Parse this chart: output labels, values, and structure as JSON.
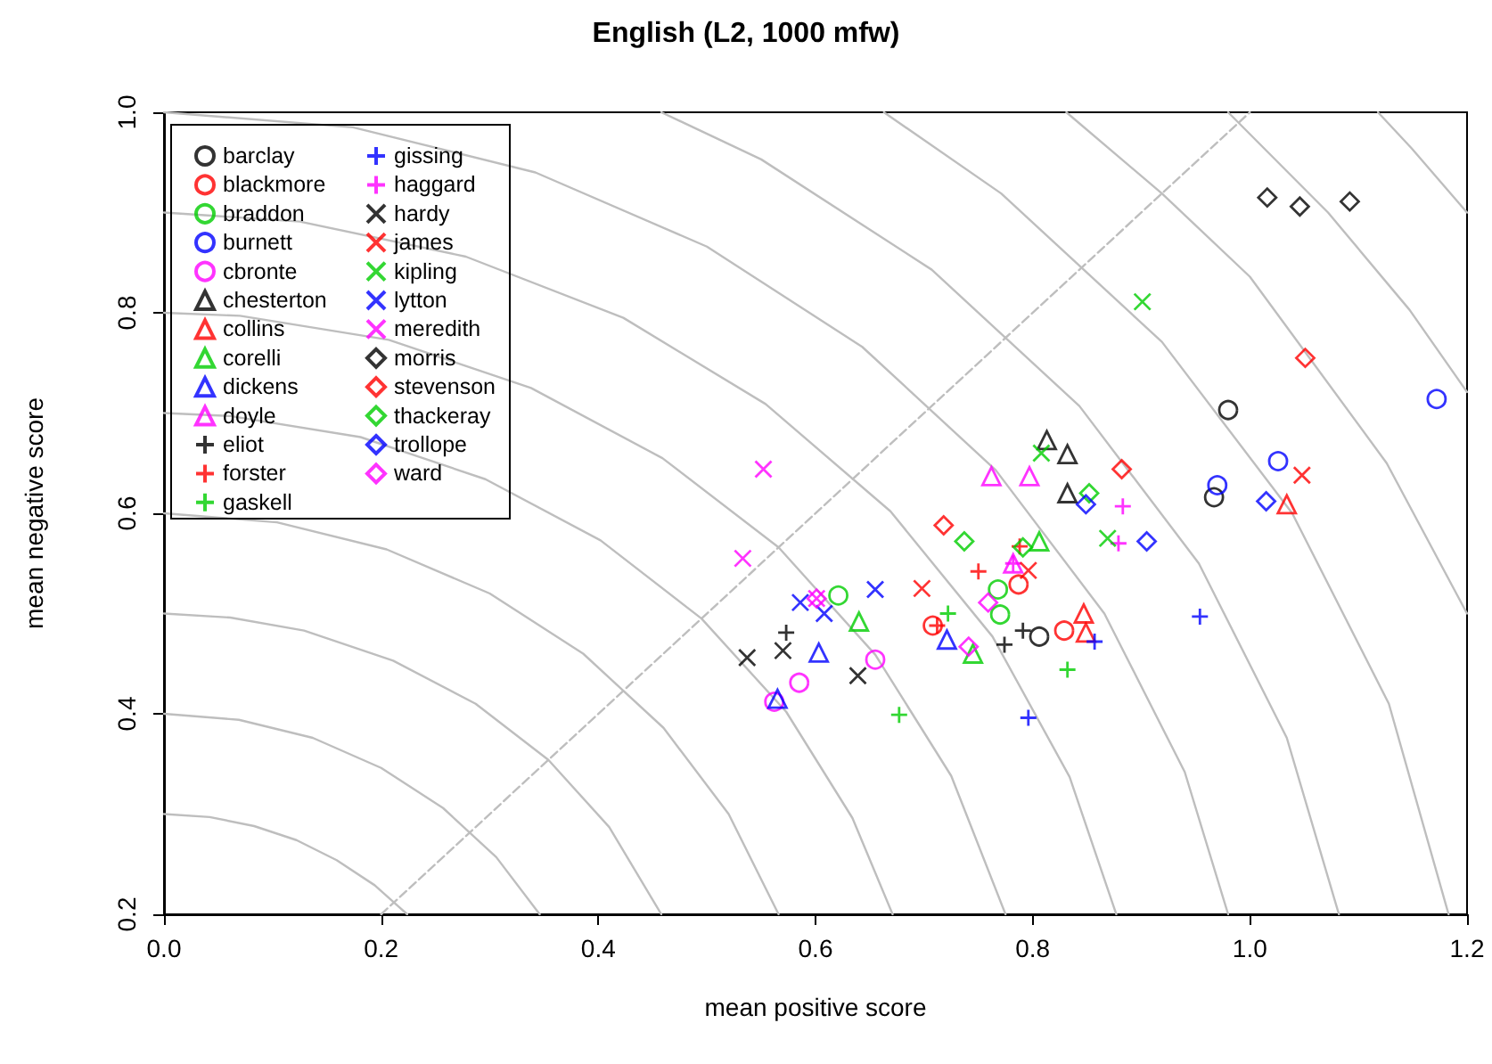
{
  "chart_data": {
    "type": "scatter",
    "title": "English (L2, 1000 mfw)",
    "xlabel": "mean positive score",
    "ylabel": "mean negative score",
    "xlim": [
      0,
      1.2
    ],
    "ylim": [
      0.2,
      1.0
    ],
    "xticks": [
      {
        "value": 0,
        "label": "0.0"
      },
      0.2,
      0.4,
      0.6,
      0.8,
      {
        "value": 1,
        "label": "1.0"
      },
      1.2
    ],
    "yticks": [
      0.2,
      0.4,
      0.6,
      0.8,
      {
        "value": 1,
        "label": "1.0"
      }
    ],
    "grid": false,
    "legend": "top left",
    "series": [
      {
        "name": "barclay",
        "color": "#000000",
        "marker": "circle",
        "x": [
          0.98,
          0.967,
          0.806
        ],
        "values": [
          0.703,
          0.616,
          0.477
        ]
      },
      {
        "name": "blackmore",
        "color": "#ff0000",
        "marker": "circle",
        "x": [
          0.708,
          0.787,
          0.829
        ],
        "values": [
          0.488,
          0.529,
          0.483
        ]
      },
      {
        "name": "braddon",
        "color": "#00cd00",
        "marker": "circle",
        "x": [
          0.621,
          0.768,
          0.77
        ],
        "values": [
          0.518,
          0.524,
          0.499
        ]
      },
      {
        "name": "burnett",
        "color": "#0000ff",
        "marker": "circle",
        "x": [
          1.172,
          1.026,
          0.97
        ],
        "values": [
          0.714,
          0.652,
          0.628
        ]
      },
      {
        "name": "cbronte",
        "color": "#ff00ff",
        "marker": "circle",
        "x": [
          0.655,
          0.585,
          0.562
        ],
        "values": [
          0.454,
          0.431,
          0.412
        ]
      },
      {
        "name": "chesterton",
        "color": "#000000",
        "marker": "triangle",
        "x": [
          0.813,
          0.832,
          0.832
        ],
        "values": [
          0.673,
          0.659,
          0.62
        ]
      },
      {
        "name": "collins",
        "color": "#ff0000",
        "marker": "triangle",
        "x": [
          1.034,
          0.847,
          0.849
        ],
        "values": [
          0.609,
          0.5,
          0.481
        ]
      },
      {
        "name": "corelli",
        "color": "#00cd00",
        "marker": "triangle",
        "x": [
          0.64,
          0.806,
          0.745
        ],
        "values": [
          0.492,
          0.572,
          0.46
        ]
      },
      {
        "name": "dickens",
        "color": "#0000ff",
        "marker": "triangle",
        "x": [
          0.603,
          0.565,
          0.721
        ],
        "values": [
          0.461,
          0.415,
          0.474
        ]
      },
      {
        "name": "doyle",
        "color": "#ff00ff",
        "marker": "triangle",
        "x": [
          0.762,
          0.797,
          0.782
        ],
        "values": [
          0.637,
          0.637,
          0.55
        ]
      },
      {
        "name": "eliot",
        "color": "#000000",
        "marker": "plus",
        "x": [
          0.573,
          0.774,
          0.791
        ],
        "values": [
          0.481,
          0.469,
          0.483
        ]
      },
      {
        "name": "forster",
        "color": "#ff0000",
        "marker": "plus",
        "x": [
          0.75,
          0.788,
          0.712
        ],
        "values": [
          0.542,
          0.567,
          0.488
        ]
      },
      {
        "name": "gaskell",
        "color": "#00cd00",
        "marker": "plus",
        "x": [
          0.677,
          0.722,
          0.832
        ],
        "values": [
          0.399,
          0.5,
          0.444
        ]
      },
      {
        "name": "gissing",
        "color": "#0000ff",
        "marker": "plus",
        "x": [
          0.796,
          0.857,
          0.954
        ],
        "values": [
          0.396,
          0.472,
          0.497
        ]
      },
      {
        "name": "haggard",
        "color": "#ff00ff",
        "marker": "plus",
        "x": [
          0.883,
          0.879,
          0.782
        ],
        "values": [
          0.607,
          0.57,
          0.55
        ]
      },
      {
        "name": "hardy",
        "color": "#000000",
        "marker": "cross",
        "x": [
          0.537,
          0.57,
          0.639
        ],
        "values": [
          0.456,
          0.463,
          0.438
        ]
      },
      {
        "name": "james",
        "color": "#ff0000",
        "marker": "cross",
        "x": [
          0.698,
          0.796,
          1.048
        ],
        "values": [
          0.525,
          0.543,
          0.638
        ]
      },
      {
        "name": "kipling",
        "color": "#00cd00",
        "marker": "cross",
        "x": [
          0.901,
          0.808,
          0.869
        ],
        "values": [
          0.811,
          0.66,
          0.575
        ]
      },
      {
        "name": "lytton",
        "color": "#0000ff",
        "marker": "cross",
        "x": [
          0.655,
          0.586,
          0.608
        ],
        "values": [
          0.524,
          0.511,
          0.5
        ]
      },
      {
        "name": "meredith",
        "color": "#ff00ff",
        "marker": "cross",
        "x": [
          0.552,
          0.533,
          0.601
        ],
        "values": [
          0.644,
          0.555,
          0.515
        ]
      },
      {
        "name": "morris",
        "color": "#000000",
        "marker": "diamond",
        "x": [
          1.016,
          1.046,
          1.092
        ],
        "values": [
          0.915,
          0.906,
          0.911
        ]
      },
      {
        "name": "stevenson",
        "color": "#ff0000",
        "marker": "diamond",
        "x": [
          1.051,
          0.718,
          0.882
        ],
        "values": [
          0.755,
          0.588,
          0.644
        ]
      },
      {
        "name": "thackeray",
        "color": "#00cd00",
        "marker": "diamond",
        "x": [
          0.737,
          0.852,
          0.791
        ],
        "values": [
          0.572,
          0.62,
          0.566
        ]
      },
      {
        "name": "trollope",
        "color": "#0000ff",
        "marker": "diamond",
        "x": [
          0.849,
          0.905,
          1.015
        ],
        "values": [
          0.609,
          0.572,
          0.612
        ]
      },
      {
        "name": "ward",
        "color": "#ff00ff",
        "marker": "diamond",
        "x": [
          0.759,
          0.741,
          0.601
        ],
        "values": [
          0.511,
          0.467,
          0.515
        ]
      },
      {
        "type": "line",
        "color": "#bebebe",
        "line_style": "dashed",
        "x": [
          0.2,
          1.0
        ],
        "values": [
          0.2,
          1.0
        ]
      },
      {
        "type": "line",
        "color": "#bebebe",
        "x": [
          0.224,
          0.194,
          0.159,
          0.122,
          0.083,
          0.042,
          0
        ],
        "values": [
          0.2,
          0.229,
          0.254,
          0.274,
          0.288,
          0.297,
          0.3
        ]
      },
      {
        "type": "line",
        "color": "#bebebe",
        "x": [
          0.346,
          0.306,
          0.257,
          0.2,
          0.137,
          0.069,
          0
        ],
        "values": [
          0.2,
          0.257,
          0.306,
          0.346,
          0.376,
          0.394,
          0.4
        ]
      },
      {
        "type": "line",
        "color": "#bebebe",
        "x": [
          0.458,
          0.41,
          0.354,
          0.287,
          0.211,
          0.129,
          0.061,
          0
        ],
        "values": [
          0.2,
          0.287,
          0.354,
          0.41,
          0.453,
          0.483,
          0.496,
          0.5
        ]
      },
      {
        "type": "line",
        "color": "#bebebe",
        "x": [
          0.566,
          0.52,
          0.46,
          0.386,
          0.3,
          0.205,
          0.104,
          0
        ],
        "values": [
          0.2,
          0.3,
          0.386,
          0.46,
          0.52,
          0.564,
          0.591,
          0.6
        ]
      },
      {
        "type": "line",
        "color": "#bebebe",
        "x": [
          0.671,
          0.634,
          0.573,
          0.495,
          0.402,
          0.296,
          0.181,
          0.061,
          0
        ],
        "values": [
          0.2,
          0.296,
          0.402,
          0.495,
          0.573,
          0.634,
          0.676,
          0.697,
          0.7
        ]
      },
      {
        "type": "line",
        "color": "#bebebe",
        "x": [
          0.775,
          0.725,
          0.655,
          0.566,
          0.459,
          0.338,
          0.207,
          0.07,
          0
        ],
        "values": [
          0.2,
          0.338,
          0.459,
          0.566,
          0.655,
          0.725,
          0.773,
          0.797,
          0.8
        ]
      },
      {
        "type": "line",
        "color": "#bebebe",
        "x": [
          0.877,
          0.834,
          0.763,
          0.669,
          0.554,
          0.423,
          0.278,
          0.125,
          0
        ],
        "values": [
          0.2,
          0.337,
          0.477,
          0.602,
          0.709,
          0.795,
          0.856,
          0.891,
          0.9
        ]
      },
      {
        "type": "line",
        "color": "#bebebe",
        "x": [
          0.98,
          0.94,
          0.866,
          0.766,
          0.643,
          0.5,
          0.342,
          0.174,
          0
        ],
        "values": [
          0.2,
          0.342,
          0.5,
          0.643,
          0.766,
          0.866,
          0.94,
          0.985,
          1.0
        ]
      },
      {
        "type": "line",
        "color": "#bebebe",
        "x": [
          1.082,
          1.034,
          0.953,
          0.843,
          0.707,
          0.55,
          0.458
        ],
        "values": [
          0.2,
          0.376,
          0.55,
          0.707,
          0.843,
          0.953,
          1.0
        ]
      },
      {
        "type": "line",
        "color": "#bebebe",
        "x": [
          1.183,
          1.128,
          1.039,
          0.919,
          0.771,
          0.663
        ],
        "values": [
          0.2,
          0.41,
          0.6,
          0.771,
          0.919,
          1.0
        ]
      },
      {
        "type": "line",
        "color": "#bebebe",
        "x": [
          1.2,
          1.126,
          1.0,
          0.919,
          0.831
        ],
        "values": [
          0.5,
          0.65,
          0.836,
          0.919,
          1.0
        ]
      },
      {
        "type": "line",
        "color": "#bebebe",
        "x": [
          1.2,
          1.147,
          1.072,
          0.98
        ],
        "values": [
          0.721,
          0.803,
          0.9,
          1.0
        ]
      },
      {
        "type": "line",
        "color": "#bebebe",
        "x": [
          1.2,
          1.149,
          1.118
        ],
        "values": [
          0.9,
          0.964,
          1.0
        ]
      }
    ]
  }
}
